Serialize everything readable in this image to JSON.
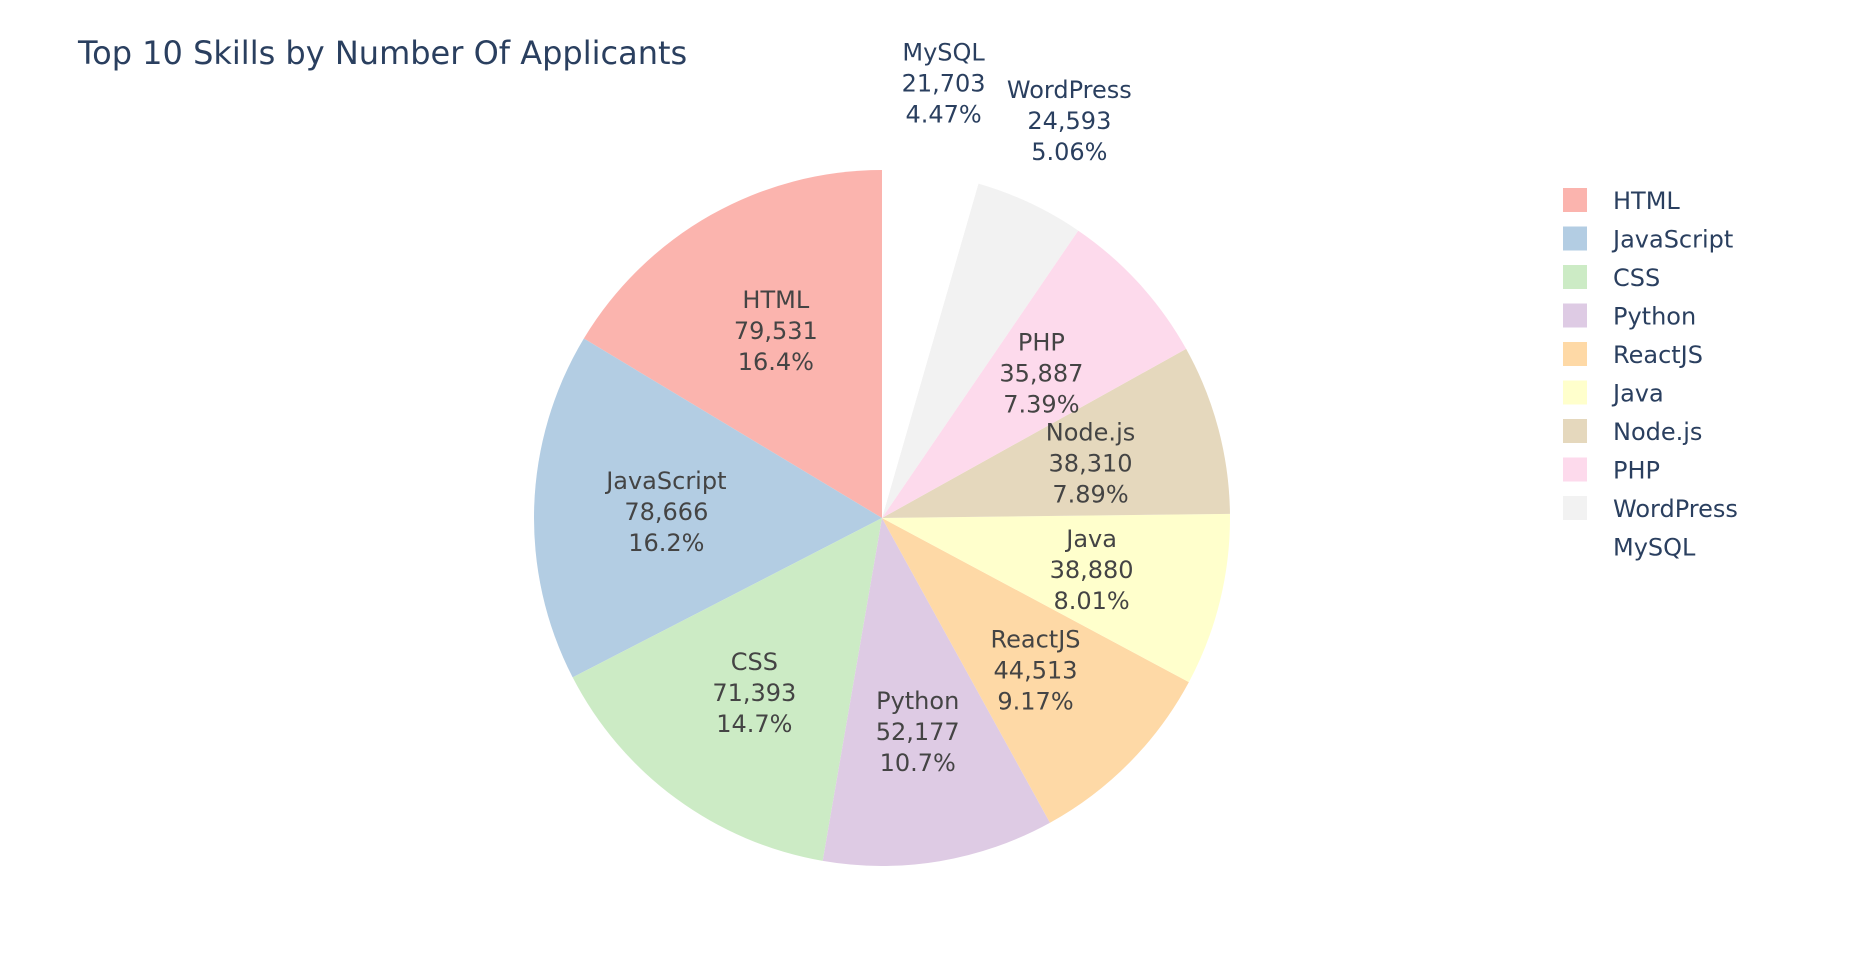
{
  "chart_data": {
    "type": "pie",
    "title": "Top 10 Skills by Number Of Applicants",
    "labels": [
      "HTML",
      "JavaScript",
      "CSS",
      "Python",
      "ReactJS",
      "Java",
      "Node.js",
      "PHP",
      "WordPress",
      "MySQL"
    ],
    "values": [
      79531,
      78666,
      71393,
      52177,
      44513,
      38880,
      38310,
      35887,
      24593,
      21703
    ],
    "value_labels": [
      "79,531",
      "78,666",
      "71,393",
      "52,177",
      "44,513",
      "38,880",
      "38,310",
      "35,887",
      "24,593",
      "21,703"
    ],
    "percent_labels": [
      "16.4%",
      "16.2%",
      "14.7%",
      "10.7%",
      "9.17%",
      "8.01%",
      "7.89%",
      "7.39%",
      "5.06%",
      "4.47%"
    ],
    "colors": [
      "#fbb4ae",
      "#b3cde3",
      "#ccebc5",
      "#decbe4",
      "#fed9a6",
      "#ffffcc",
      "#e5d8bd",
      "#fddaec",
      "#f2f2f2",
      "#ffffff"
    ],
    "label_color_inside": "#444444",
    "label_color_outside": "#2a3f5f",
    "direction": "counterclockwise",
    "rotation_start": "top",
    "textinfo": "label+value+percent",
    "legend_position": "right"
  }
}
